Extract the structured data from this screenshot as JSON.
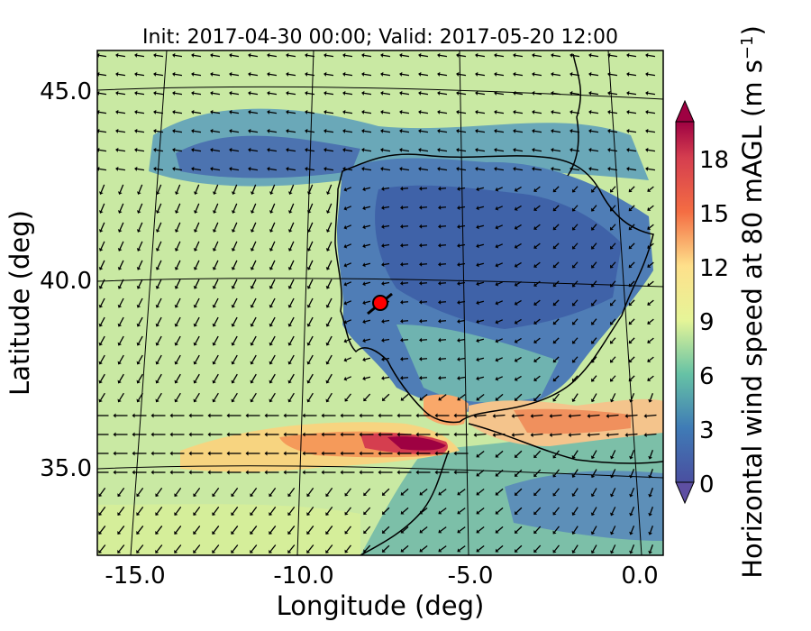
{
  "title": "Init: 2017-04-30 00:00; Valid: 2017-05-20 12:00",
  "axes": {
    "xlabel": "Longitude (deg)",
    "ylabel": "Latitude (deg)",
    "xticks": [
      "-15.0",
      "-10.0",
      "-5.0",
      "0.0"
    ],
    "yticks": [
      "45.0",
      "40.0",
      "35.0"
    ]
  },
  "colorbar": {
    "label": "Horizontal wind speed at 80 mAGL (m s",
    "label_sup": "−1",
    "label_end": ")",
    "ticks": [
      "0",
      "3",
      "6",
      "9",
      "12",
      "15",
      "18"
    ],
    "range": [
      0,
      20
    ],
    "extend": "both",
    "colors": [
      "#5e4fa2",
      "#4d63ac",
      "#3f7bb6",
      "#3288bd",
      "#469db4",
      "#5cb5a8",
      "#77c7a4",
      "#97d4a4",
      "#b5e0a2",
      "#d1ec9c",
      "#e9f69c",
      "#f6fbb2",
      "#fee999",
      "#fed481",
      "#fdbb6c",
      "#fba05b",
      "#f57f4b",
      "#e8603f",
      "#d53e4f",
      "#b51d47",
      "#9e0142"
    ]
  },
  "marker": {
    "name": "site",
    "lon": -7.7,
    "lat": 39.35,
    "color": "#ff0000"
  }
}
